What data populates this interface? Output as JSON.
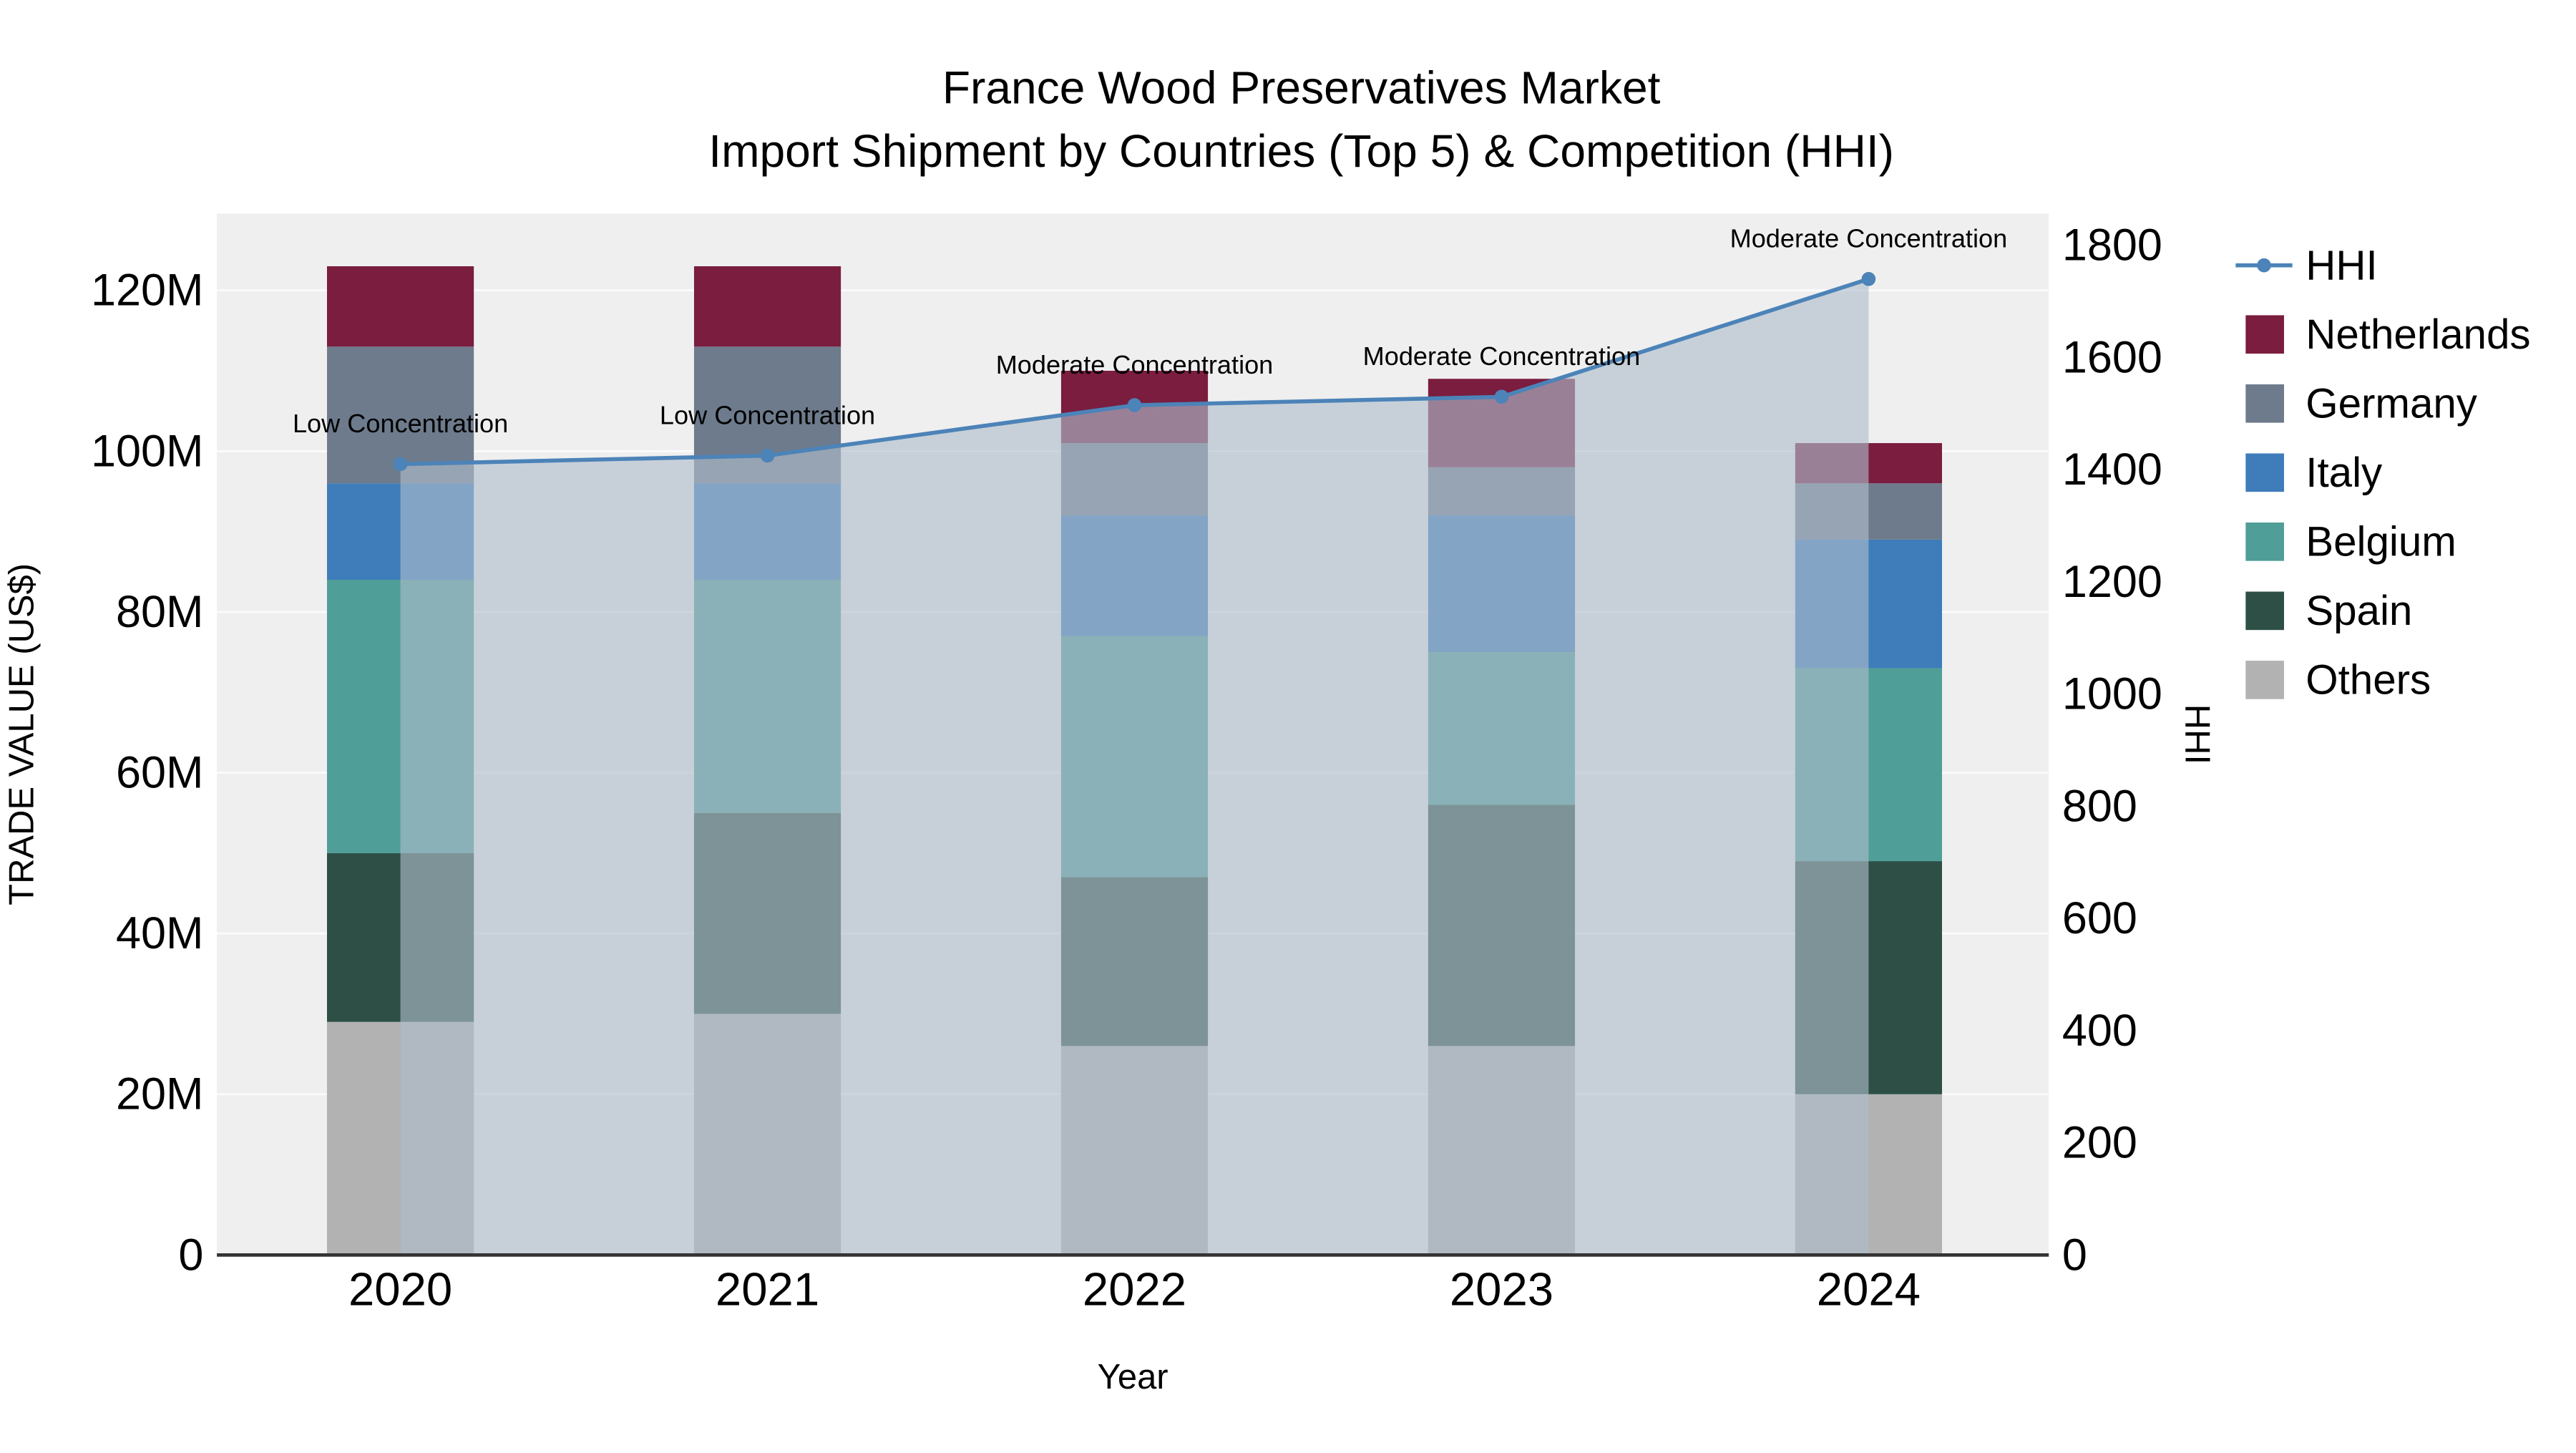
{
  "figure": {
    "background": "#ffffff",
    "plot_background": "#efefef",
    "grid_color": "#ffffff"
  },
  "chart_data": {
    "type": "combo-stacked-bar-line",
    "title": "France Wood Preservatives Market",
    "subtitle": "Import Shipment by Countries (Top 5) & Competition (HHI)",
    "xlabel": "Year",
    "ylabel_left": "TRADE VALUE (US$)",
    "ylabel_right": "HHI",
    "categories": [
      "2020",
      "2021",
      "2022",
      "2023",
      "2024"
    ],
    "stack_order_bottom_to_top": [
      "Others",
      "Spain",
      "Belgium",
      "Italy",
      "Germany",
      "Netherlands"
    ],
    "bar_series": [
      {
        "name": "Others",
        "color": "#b2b2b2",
        "values_musd": [
          29,
          30,
          26,
          26,
          20
        ]
      },
      {
        "name": "Spain",
        "color": "#2d4f45",
        "values_musd": [
          21,
          25,
          21,
          30,
          29
        ]
      },
      {
        "name": "Belgium",
        "color": "#4f9e97",
        "values_musd": [
          34,
          29,
          30,
          19,
          24
        ]
      },
      {
        "name": "Italy",
        "color": "#3e7cba",
        "values_musd": [
          12,
          12,
          15,
          17,
          16
        ]
      },
      {
        "name": "Germany",
        "color": "#6e7b8c",
        "values_musd": [
          17,
          17,
          9,
          6,
          7
        ]
      },
      {
        "name": "Netherlands",
        "color": "#7a1d3f",
        "values_musd": [
          10,
          10,
          9,
          11,
          5
        ]
      }
    ],
    "line_series": {
      "name": "HHI",
      "axis": "right",
      "color": "#4c83b8",
      "values": [
        1410,
        1425,
        1515,
        1530,
        1740
      ],
      "area_fill": "#aebdcb",
      "area_opacity": 0.62
    },
    "annotations": [
      {
        "x": "2020",
        "text": "Low Concentration"
      },
      {
        "x": "2021",
        "text": "Low Concentration"
      },
      {
        "x": "2022",
        "text": "Moderate Concentration"
      },
      {
        "x": "2023",
        "text": "Moderate Concentration"
      },
      {
        "x": "2024",
        "text": "Moderate Concentration"
      }
    ],
    "left_axis": {
      "tick_labels": [
        "0",
        "20M",
        "40M",
        "60M",
        "80M",
        "100M",
        "120M"
      ],
      "tick_values": [
        0,
        20,
        40,
        60,
        80,
        100,
        120
      ]
    },
    "right_axis": {
      "tick_labels": [
        "0",
        "200",
        "400",
        "600",
        "800",
        "1000",
        "1200",
        "1400",
        "1600",
        "1800"
      ],
      "tick_values": [
        0,
        200,
        400,
        600,
        800,
        1000,
        1200,
        1400,
        1600,
        1800
      ]
    },
    "legend": [
      {
        "label": "HHI",
        "symbol": "line",
        "color": "#4c83b8"
      },
      {
        "label": "Netherlands",
        "symbol": "square",
        "color": "#7a1d3f"
      },
      {
        "label": "Germany",
        "symbol": "square",
        "color": "#6e7b8c"
      },
      {
        "label": "Italy",
        "symbol": "square",
        "color": "#3e7cba"
      },
      {
        "label": "Belgium",
        "symbol": "square",
        "color": "#4f9e97"
      },
      {
        "label": "Spain",
        "symbol": "square",
        "color": "#2d4f45"
      },
      {
        "label": "Others",
        "symbol": "square",
        "color": "#b2b2b2"
      }
    ]
  }
}
